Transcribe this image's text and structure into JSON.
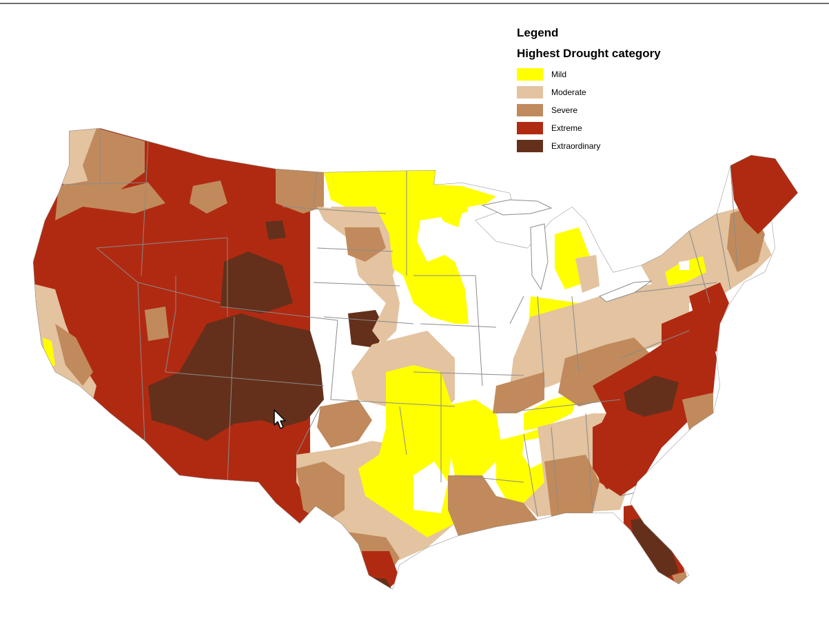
{
  "legend": {
    "heading": "Legend",
    "subtitle": "Highest Drought category",
    "categories": [
      {
        "key": "mild",
        "label": "Mild",
        "color": "#ffff00"
      },
      {
        "key": "moderate",
        "label": "Moderate",
        "color": "#e3c3a0"
      },
      {
        "key": "severe",
        "label": "Severe",
        "color": "#c18a5c"
      },
      {
        "key": "extreme",
        "label": "Extreme",
        "color": "#b02a12"
      },
      {
        "key": "extraordinary",
        "label": "Extraordinary",
        "color": "#64301b"
      }
    ]
  },
  "map": {
    "colors": {
      "none": "#ffffff",
      "mild": "#ffff00",
      "moderate": "#e3c3a0",
      "severe": "#c18a5c",
      "extreme": "#b02a12",
      "extraordinary": "#64301b",
      "boundary": "#8a8a8a"
    }
  },
  "cursor": {
    "icon": "arrow-cursor-icon"
  }
}
